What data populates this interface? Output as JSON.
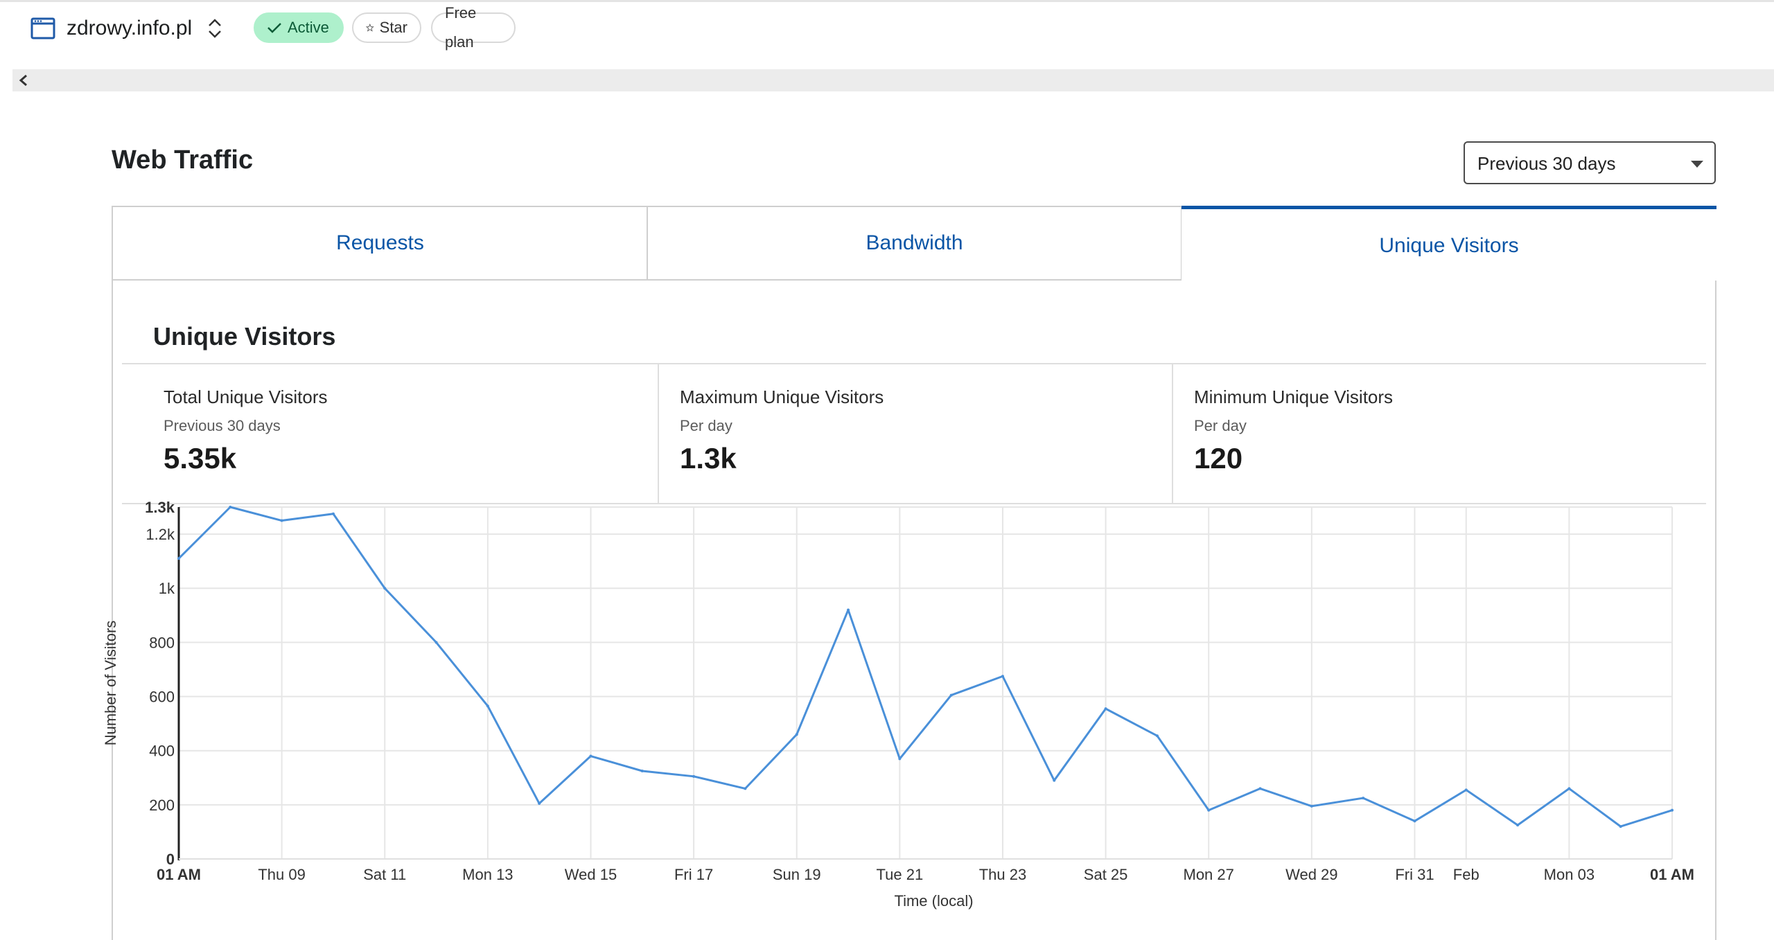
{
  "header": {
    "site_name": "zdrowy.info.pl",
    "status_badge": "Active",
    "star_label": "Star",
    "plan_label": "Free plan"
  },
  "traffic": {
    "title": "Web Traffic",
    "range_selected": "Previous 30 days",
    "tabs": [
      {
        "label": "Requests",
        "active": false
      },
      {
        "label": "Bandwidth",
        "active": false
      },
      {
        "label": "Unique Visitors",
        "active": true
      }
    ]
  },
  "unique_visitors": {
    "section_title": "Unique Visitors",
    "stats": [
      {
        "label": "Total Unique Visitors",
        "sub": "Previous 30 days",
        "value": "5.35k"
      },
      {
        "label": "Maximum Unique Visitors",
        "sub": "Per day",
        "value": "1.3k"
      },
      {
        "label": "Minimum Unique Visitors",
        "sub": "Per day",
        "value": "120"
      }
    ]
  },
  "colors": {
    "accent": "#0a55a6",
    "line": "#4a90d9",
    "active_badge_bg": "#aef0cc"
  },
  "chart_data": {
    "type": "line",
    "xlabel": "Time (local)",
    "ylabel": "Number of Visitors",
    "ylim": [
      0,
      1300
    ],
    "y_ticks": [
      0,
      200,
      400,
      600,
      800,
      1000,
      1200,
      1300
    ],
    "y_tick_labels": [
      "0",
      "200",
      "400",
      "600",
      "800",
      "1k",
      "1.2k",
      "1.3k"
    ],
    "x_tick_labels": [
      "01 AM",
      "Thu 09",
      "Sat 11",
      "Mon 13",
      "Wed 15",
      "Fri 17",
      "Sun 19",
      "Tue 21",
      "Thu 23",
      "Sat 25",
      "Mon 27",
      "Wed 29",
      "Fri 31",
      "Feb",
      "Mon 03",
      "01 AM"
    ],
    "x_tick_positions": [
      0,
      2,
      4,
      6,
      8,
      10,
      12,
      14,
      16,
      18,
      20,
      22,
      24,
      25,
      27,
      29
    ],
    "grid": true,
    "series": [
      {
        "x": [
          0,
          1,
          2,
          3,
          4,
          5,
          6,
          7,
          8,
          9,
          10,
          11,
          12,
          13,
          14,
          15,
          16,
          17,
          18,
          19,
          20,
          21,
          22,
          23,
          24,
          25,
          26,
          27,
          28,
          29
        ],
        "values": [
          1110,
          1300,
          1250,
          1275,
          1000,
          800,
          565,
          205,
          380,
          325,
          305,
          260,
          460,
          920,
          370,
          605,
          675,
          290,
          555,
          455,
          180,
          260,
          195,
          225,
          140,
          255,
          125,
          260,
          120,
          180
        ]
      }
    ]
  }
}
